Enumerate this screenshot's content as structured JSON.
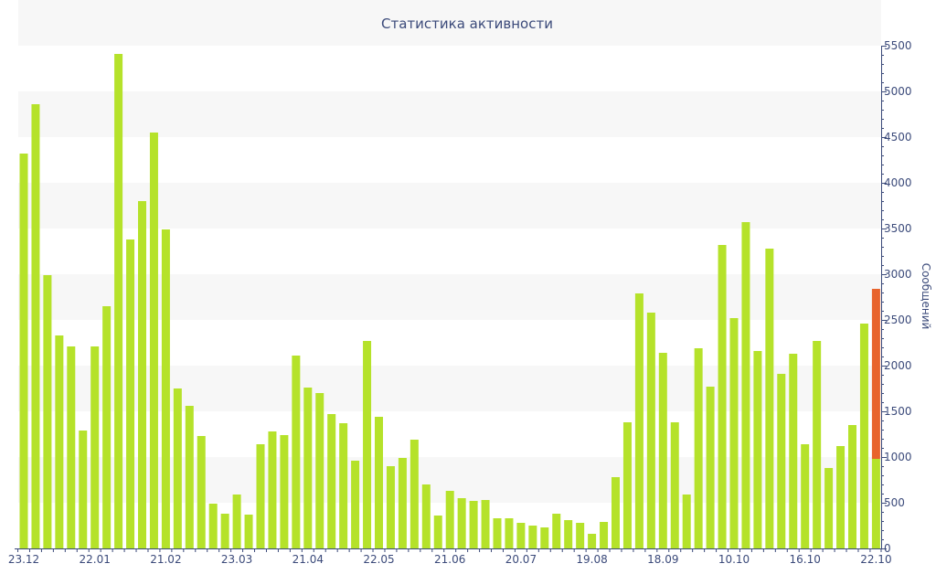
{
  "chart_data": {
    "type": "bar",
    "title": "Статистика активности",
    "xlabel": "",
    "ylabel": "Сообщений",
    "ylim": [
      0,
      5500
    ],
    "yticks": [
      0,
      500,
      1000,
      1500,
      2000,
      2500,
      3000,
      3500,
      4000,
      4500,
      5000,
      5500
    ],
    "y_axis_position": "right",
    "grid": "alternating horizontal bands",
    "x_tick_labels": [
      {
        "index": 0,
        "label": "23.12"
      },
      {
        "index": 6,
        "label": "22.01"
      },
      {
        "index": 12,
        "label": "21.02"
      },
      {
        "index": 18,
        "label": "23.03"
      },
      {
        "index": 24,
        "label": "21.04"
      },
      {
        "index": 30,
        "label": "22.05"
      },
      {
        "index": 36,
        "label": "21.06"
      },
      {
        "index": 42,
        "label": "20.07"
      },
      {
        "index": 48,
        "label": "19.08"
      },
      {
        "index": 54,
        "label": "18.09"
      },
      {
        "index": 60,
        "label": "10.10"
      },
      {
        "index": 66,
        "label": "16.10"
      },
      {
        "index": 72,
        "label": "22.10"
      }
    ],
    "values": [
      4320,
      4860,
      2990,
      2330,
      2210,
      1290,
      2210,
      2650,
      5410,
      3380,
      3800,
      4550,
      3490,
      1750,
      1560,
      1230,
      490,
      380,
      590,
      370,
      1140,
      1280,
      1240,
      2110,
      1760,
      1700,
      1470,
      1370,
      960,
      2270,
      1440,
      900,
      990,
      1190,
      700,
      360,
      630,
      550,
      520,
      530,
      330,
      330,
      280,
      250,
      230,
      380,
      310,
      280,
      160,
      290,
      780,
      1380,
      2790,
      2580,
      2140,
      1380,
      590,
      2190,
      1770,
      3320,
      2520,
      3570,
      2160,
      3280,
      1910,
      2130,
      1140,
      2270,
      880,
      1120,
      1350,
      2460,
      980
    ],
    "highlight": {
      "index": 72,
      "total": 2840
    },
    "colors": {
      "bar": "#b5e22a",
      "highlight": "#e8642d",
      "band": "#f7f7f7",
      "axis": "#3b4a7a"
    }
  }
}
